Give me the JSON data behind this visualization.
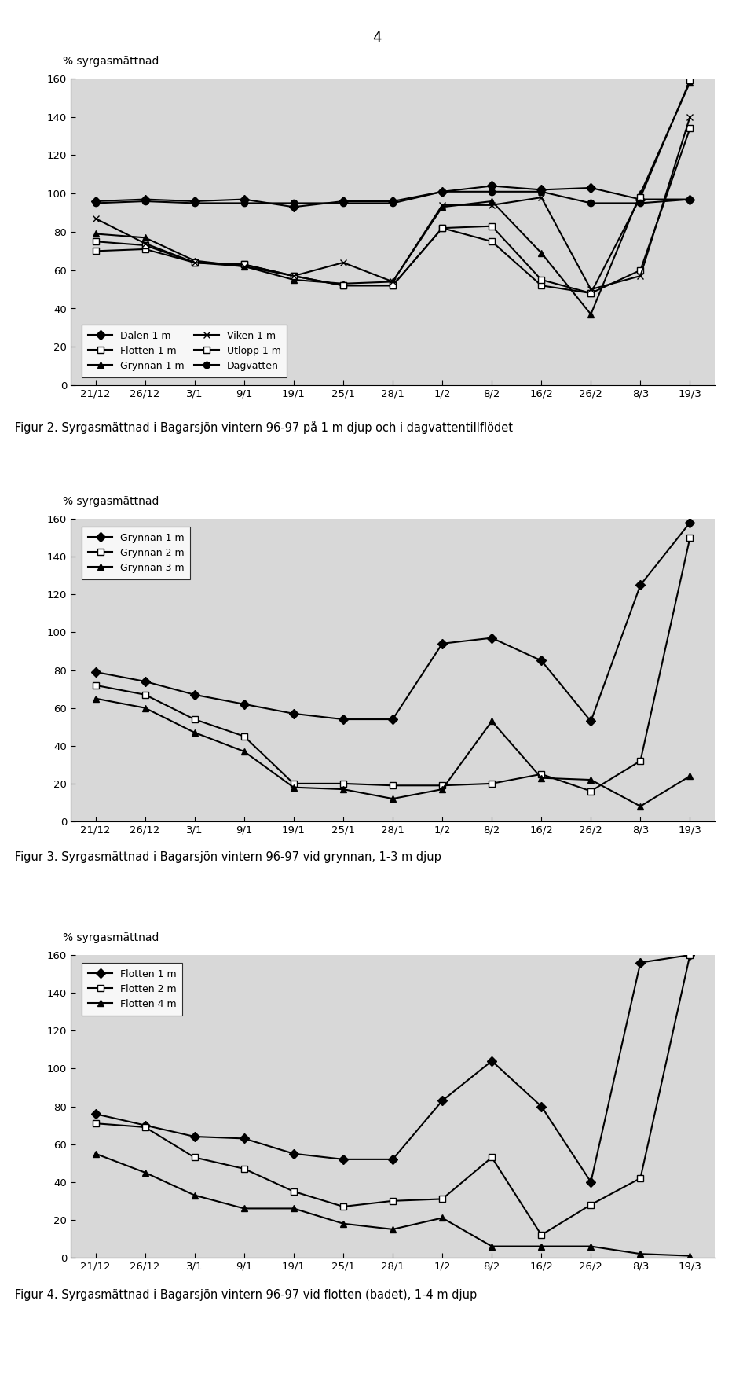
{
  "page_number": "4",
  "x_labels": [
    "21/12",
    "26/12",
    "3/1",
    "9/1",
    "19/1",
    "25/1",
    "28/1",
    "1/2",
    "8/2",
    "16/2",
    "26/2",
    "8/3",
    "19/3"
  ],
  "ylabel": "% syrgasmättnad",
  "ylim": [
    0,
    160
  ],
  "yticks": [
    0,
    20,
    40,
    60,
    80,
    100,
    120,
    140,
    160
  ],
  "background_color": "#d8d8d8",
  "fig_caption2": "Figur 2. Syrgasmättnad i Bagarsjön vintern 96-97 på 1 m djup och i dagvattentillflödet",
  "fig_caption3": "Figur 3. Syrgasmättnad i Bagarsjön vintern 96-97 vid grynnan, 1-3 m djup",
  "fig_caption4": "Figur 4. Syrgasmättnad i Bagarsjön vintern 96-97 vid flotten (badet), 1-4 m djup",
  "chart1": {
    "series": {
      "Dalen 1 m": [
        96,
        97,
        96,
        97,
        93,
        96,
        96,
        101,
        104,
        102,
        103,
        97,
        97
      ],
      "Grynnan 1 m": [
        79,
        77,
        65,
        62,
        55,
        53,
        54,
        93,
        96,
        69,
        37,
        100,
        158
      ],
      "Utlopp 1 m": [
        70,
        71,
        64,
        63,
        57,
        52,
        52,
        82,
        75,
        52,
        48,
        60,
        134
      ],
      "Flotten 1 m": [
        75,
        73,
        64,
        63,
        57,
        52,
        52,
        82,
        83,
        55,
        48,
        98,
        159
      ],
      "Viken 1 m": [
        87,
        74,
        64,
        62,
        57,
        64,
        54,
        94,
        94,
        98,
        50,
        57,
        140
      ],
      "Dagvatten": [
        95,
        96,
        95,
        95,
        95,
        95,
        95,
        101,
        101,
        101,
        95,
        95,
        97
      ]
    },
    "markers": {
      "Dalen 1 m": "D",
      "Grynnan 1 m": "^",
      "Utlopp 1 m": "s",
      "Flotten 1 m": "s",
      "Viken 1 m": "x",
      "Dagvatten": "o"
    },
    "marker_fill": {
      "Dalen 1 m": "black",
      "Grynnan 1 m": "black",
      "Utlopp 1 m": "white",
      "Flotten 1 m": "white",
      "Viken 1 m": "none",
      "Dagvatten": "black"
    },
    "legend_order": [
      "Dalen 1 m",
      "Flotten 1 m",
      "Grynnan 1 m",
      "Viken 1 m",
      "Utlopp 1 m",
      "Dagvatten"
    ]
  },
  "chart2": {
    "series": {
      "Grynnan 1 m": [
        79,
        74,
        67,
        62,
        57,
        54,
        54,
        94,
        97,
        85,
        53,
        125,
        158
      ],
      "Grynnan 2 m": [
        72,
        67,
        54,
        45,
        20,
        20,
        19,
        19,
        20,
        25,
        16,
        32,
        150
      ],
      "Grynnan 3 m": [
        65,
        60,
        47,
        37,
        18,
        17,
        12,
        17,
        53,
        23,
        22,
        8,
        24
      ]
    },
    "markers": {
      "Grynnan 1 m": "D",
      "Grynnan 2 m": "s",
      "Grynnan 3 m": "^"
    },
    "marker_fill": {
      "Grynnan 1 m": "black",
      "Grynnan 2 m": "white",
      "Grynnan 3 m": "black"
    }
  },
  "chart3": {
    "series": {
      "Flotten 1 m": [
        76,
        70,
        64,
        63,
        55,
        52,
        52,
        83,
        104,
        80,
        40,
        156,
        160
      ],
      "Flotten 2 m": [
        71,
        69,
        53,
        47,
        35,
        27,
        30,
        31,
        53,
        12,
        28,
        42,
        160
      ],
      "Flotten 4 m": [
        55,
        45,
        33,
        26,
        26,
        18,
        15,
        21,
        6,
        6,
        6,
        2,
        1
      ]
    },
    "markers": {
      "Flotten 1 m": "D",
      "Flotten 2 m": "s",
      "Flotten 4 m": "^"
    },
    "marker_fill": {
      "Flotten 1 m": "black",
      "Flotten 2 m": "white",
      "Flotten 4 m": "black"
    }
  }
}
